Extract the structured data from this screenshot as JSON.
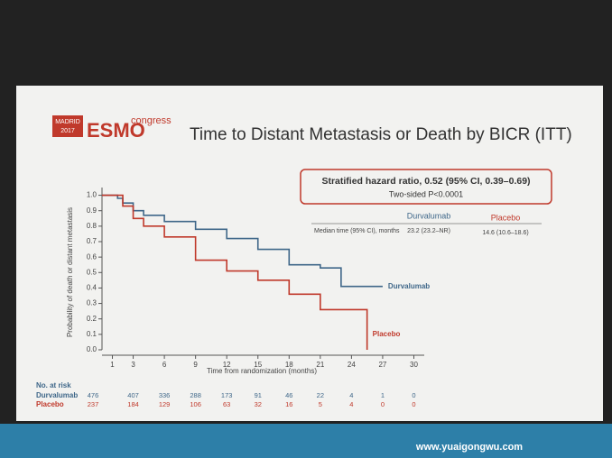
{
  "logo": {
    "city": "MADRID",
    "year": "2017",
    "brand": "ESMO",
    "suffix": "congress"
  },
  "watermark": "www.yuaigongwu.com",
  "chart_data": {
    "type": "line",
    "step": true,
    "title": "Time to Distant Metastasis or Death by BICR (ITT)",
    "hazard_ratio": "Stratified hazard ratio, 0.52 (95% CI, 0.39–0.69)",
    "p_value": "Two-sided P<0.0001",
    "median_table": {
      "headers": [
        "Durvalumab",
        "Placebo"
      ],
      "row_label": "Median time (95% CI), months",
      "values": [
        "23.2 (23.2–NR)",
        "14.6 (10.6–18.6)"
      ]
    },
    "x_label": "Time from randomization (months)",
    "y_label": "Probability of death or distant metastasis",
    "xlim": [
      0,
      31
    ],
    "xticks": [
      1,
      3,
      6,
      9,
      12,
      15,
      18,
      21,
      24,
      27,
      30
    ],
    "ylim": [
      0,
      1.05
    ],
    "yticks": [
      {
        "value": 0,
        "label": "0.0"
      },
      0.1,
      0.2,
      0.3,
      0.4,
      0.5,
      0.6,
      0.7,
      0.8,
      0.9,
      {
        "value": 1,
        "label": "1.0"
      }
    ],
    "series": [
      {
        "name": "Durvalumab",
        "color": "#3f6789",
        "x": [
          0,
          1,
          1.5,
          2,
          3,
          4,
          6,
          9,
          12,
          15,
          18,
          21,
          23,
          23,
          27
        ],
        "values": [
          1,
          1,
          0.98,
          0.95,
          0.9,
          0.87,
          0.83,
          0.78,
          0.72,
          0.65,
          0.55,
          0.53,
          0.53,
          0.41,
          0.41
        ]
      },
      {
        "name": "Placebo",
        "color": "#c0392b",
        "x": [
          0,
          1,
          2,
          3,
          4,
          6,
          9,
          12,
          15,
          18,
          21,
          21,
          25.5,
          25.5
        ],
        "values": [
          1,
          1,
          0.93,
          0.85,
          0.8,
          0.73,
          0.58,
          0.51,
          0.45,
          0.36,
          0.32,
          0.26,
          0.26,
          0
        ]
      }
    ],
    "at_risk": {
      "title": "No. at risk",
      "rows": [
        {
          "name": "Durvalumab",
          "values": [
            476,
            407,
            336,
            288,
            173,
            91,
            46,
            22,
            4,
            1,
            0
          ]
        },
        {
          "name": "Placebo",
          "values": [
            237,
            184,
            129,
            106,
            63,
            32,
            16,
            5,
            4,
            0,
            0
          ]
        }
      ]
    }
  }
}
